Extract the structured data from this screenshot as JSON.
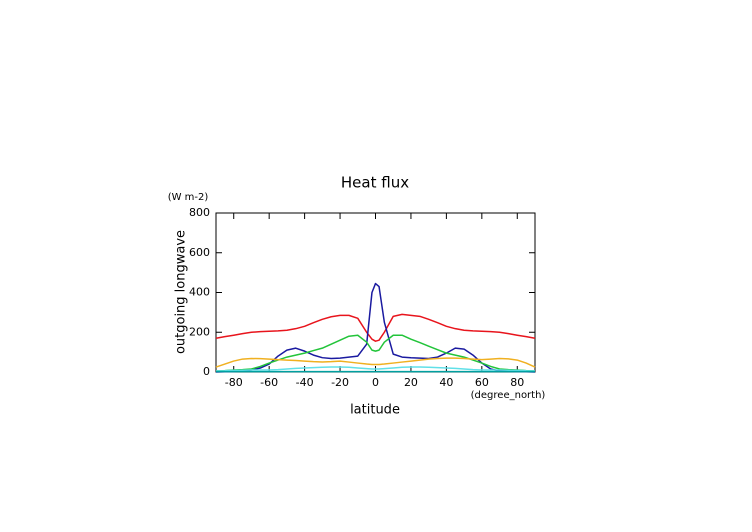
{
  "chart_data": {
    "type": "line",
    "title": "Heat flux",
    "y_label": "outgoing longwave",
    "y_unit": "(W m-2)",
    "x_label": "latitude",
    "x_unit": "(degree_north)",
    "x": [
      -90,
      -85,
      -80,
      -75,
      -70,
      -65,
      -60,
      -55,
      -50,
      -45,
      -40,
      -35,
      -30,
      -25,
      -20,
      -15,
      -10,
      -5,
      -2,
      0,
      2,
      5,
      10,
      15,
      20,
      25,
      30,
      35,
      40,
      45,
      50,
      55,
      60,
      65,
      70,
      75,
      80,
      85,
      90
    ],
    "series": [
      {
        "color": "#e8141c",
        "values": [
          170,
          178,
          185,
          193,
          200,
          203,
          205,
          207,
          210,
          218,
          230,
          248,
          265,
          278,
          285,
          285,
          270,
          200,
          165,
          155,
          160,
          200,
          280,
          290,
          285,
          280,
          265,
          248,
          230,
          218,
          210,
          207,
          205,
          203,
          200,
          193,
          185,
          178,
          170
        ]
      },
      {
        "color": "#1a1aa0",
        "values": [
          0,
          1,
          2,
          5,
          10,
          20,
          40,
          80,
          110,
          120,
          105,
          85,
          72,
          68,
          70,
          75,
          80,
          140,
          400,
          445,
          430,
          250,
          90,
          75,
          72,
          70,
          68,
          75,
          95,
          120,
          115,
          85,
          45,
          15,
          5,
          3,
          2,
          1,
          0
        ]
      },
      {
        "color": "#22c43a",
        "values": [
          5,
          7,
          10,
          12,
          15,
          28,
          45,
          60,
          75,
          85,
          95,
          108,
          120,
          140,
          160,
          180,
          185,
          150,
          110,
          105,
          110,
          150,
          185,
          185,
          165,
          148,
          130,
          112,
          95,
          85,
          75,
          60,
          45,
          28,
          15,
          12,
          10,
          7,
          5
        ]
      },
      {
        "color": "#f0b020",
        "values": [
          25,
          40,
          55,
          65,
          68,
          67,
          65,
          62,
          60,
          58,
          55,
          52,
          50,
          52,
          55,
          50,
          45,
          40,
          38,
          38,
          38,
          40,
          45,
          50,
          55,
          60,
          65,
          68,
          70,
          70,
          68,
          65,
          62,
          65,
          68,
          66,
          60,
          45,
          25
        ]
      },
      {
        "color": "#60e0e8",
        "values": [
          5,
          6,
          8,
          9,
          10,
          10,
          10,
          12,
          15,
          18,
          20,
          22,
          24,
          25,
          25,
          24,
          20,
          17,
          15,
          15,
          15,
          17,
          20,
          24,
          25,
          25,
          24,
          22,
          20,
          18,
          15,
          12,
          10,
          10,
          10,
          9,
          8,
          6,
          5
        ]
      },
      {
        "color": "#00a0a0",
        "values": [
          2,
          2,
          2,
          2,
          2,
          2,
          2,
          2,
          2,
          2,
          2,
          2,
          2,
          2,
          2,
          2,
          2,
          2,
          2,
          2,
          2,
          2,
          2,
          2,
          2,
          2,
          2,
          2,
          2,
          2,
          2,
          2,
          2,
          2,
          2,
          2,
          2,
          2,
          2
        ]
      }
    ],
    "xlim": [
      -90,
      90
    ],
    "xticks": [
      -80,
      -60,
      -40,
      -20,
      0,
      20,
      40,
      60,
      80
    ],
    "ylim": [
      0,
      800
    ],
    "yticks": [
      0,
      200,
      400,
      600,
      800
    ]
  }
}
